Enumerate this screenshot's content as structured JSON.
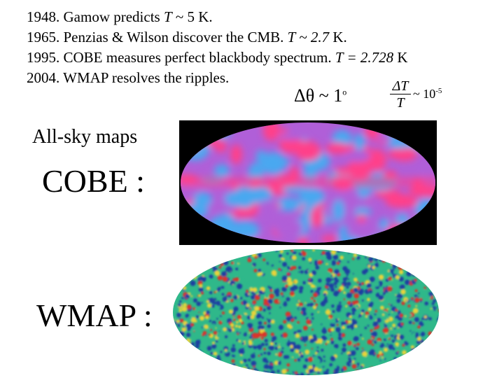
{
  "timeline": [
    {
      "pre": "1948. Gamow predicts ",
      "var": "T",
      "post": " ~ 5 K."
    },
    {
      "pre": "1965. Penzias & Wilson discover the CMB.  ",
      "var": "T ~ 2.7",
      "post": " K."
    },
    {
      "pre": "1995. COBE measures perfect blackbody spectrum. ",
      "var": "T = 2.728",
      "post": " K"
    },
    {
      "pre": "2004. WMAP resolves the ripples.",
      "var": "",
      "post": ""
    }
  ],
  "equations": {
    "angle": "Δθ ~ 1",
    "angle_sup": "o",
    "frac_num": "ΔT",
    "frac_den": "T",
    "ratio": "~ 10",
    "ratio_sup": "-5"
  },
  "labels": {
    "all_sky": "All-sky maps",
    "cobe": "COBE :",
    "wmap": "WMAP :"
  },
  "colors": {
    "cobe_background": "#000000",
    "cobe_pink": "#ff3f8a",
    "cobe_blue": "#4aa8f0",
    "cobe_violet": "#b05fd8",
    "wmap_blue": "#1e3fa0",
    "wmap_green": "#2fb88a",
    "wmap_yellow": "#e6d33a",
    "wmap_red": "#d8342a"
  }
}
